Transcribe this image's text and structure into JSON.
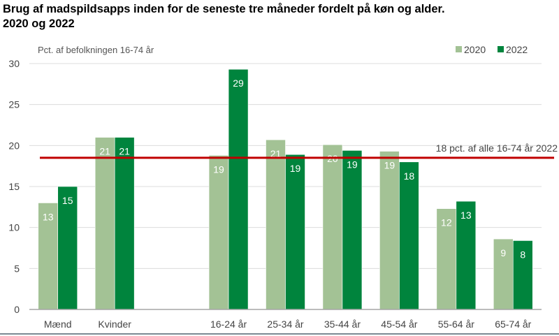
{
  "title_line1": "Brug af madspildsapps inden for de seneste tre måneder fordelt på køn og alder.",
  "title_line2": "2020 og 2022",
  "chart_data": {
    "type": "bar",
    "ylabel": "Pct. af befolkningen 16-74 år",
    "ylim": [
      0,
      30
    ],
    "yticks": [
      0,
      5,
      10,
      15,
      20,
      25,
      30
    ],
    "grid": true,
    "legend_position": "top-right",
    "categories": [
      "Mænd",
      "Kvinder",
      "",
      "16-24 år",
      "25-34 år",
      "35-44 år",
      "45-54 år",
      "55-64 år",
      "65-74 år"
    ],
    "series": [
      {
        "name": "2020",
        "color": "#a3c295",
        "values": [
          13.0,
          21.0,
          null,
          18.8,
          20.7,
          20.1,
          19.3,
          12.3,
          8.6
        ],
        "labels": [
          "13",
          "21",
          "",
          "19",
          "21",
          "20",
          "19",
          "12",
          "9"
        ]
      },
      {
        "name": "2022",
        "color": "#00843d",
        "values": [
          15.0,
          21.0,
          null,
          29.3,
          18.9,
          19.4,
          18.0,
          13.2,
          8.4
        ],
        "labels": [
          "15",
          "21",
          "",
          "29",
          "19",
          "19",
          "18",
          "13",
          "8"
        ]
      }
    ],
    "reference_line": {
      "value": 18.5,
      "label": "18 pct. af alle 16-74 år  2022",
      "color": "#c00000"
    }
  }
}
